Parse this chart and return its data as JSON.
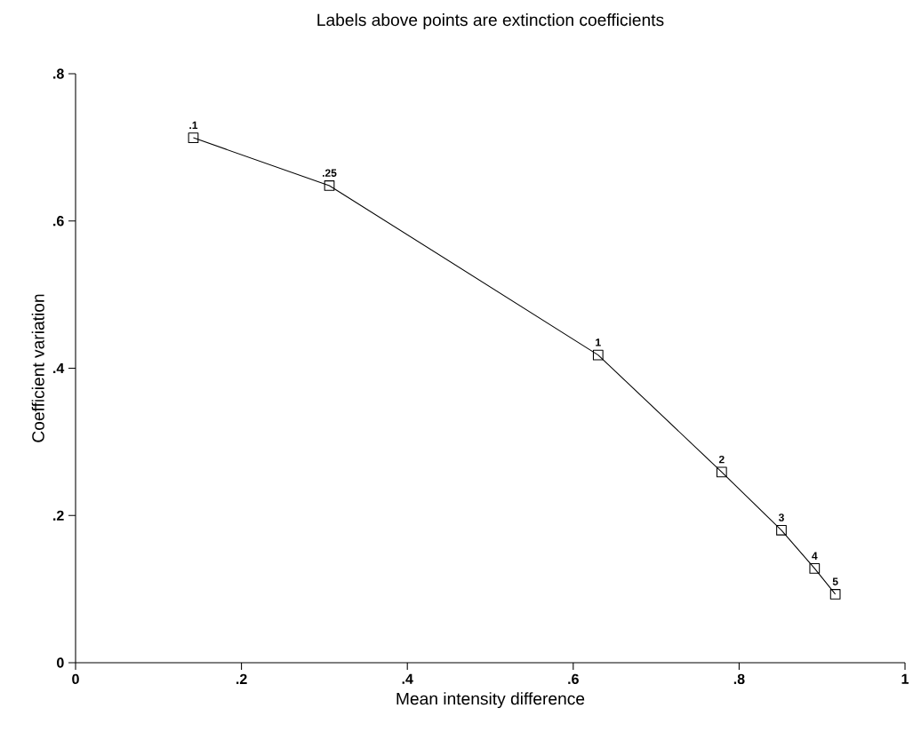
{
  "chart_data": {
    "type": "line",
    "title": "Labels above points are extinction coefficients",
    "xlabel": "Mean intensity difference",
    "ylabel": "Coefficient variation",
    "x": [
      0.142,
      0.306,
      0.63,
      0.779,
      0.851,
      0.891,
      0.916
    ],
    "values": [
      0.713,
      0.648,
      0.418,
      0.259,
      0.18,
      0.128,
      0.093
    ],
    "annotations": [
      {
        "text": ".1",
        "x": 0.142,
        "y": 0.713
      },
      {
        "text": ".25",
        "x": 0.306,
        "y": 0.648
      },
      {
        "text": "1",
        "x": 0.63,
        "y": 0.418
      },
      {
        "text": "2",
        "x": 0.779,
        "y": 0.259
      },
      {
        "text": "3",
        "x": 0.851,
        "y": 0.18
      },
      {
        "text": "4",
        "x": 0.891,
        "y": 0.128
      },
      {
        "text": "5",
        "x": 0.916,
        "y": 0.093
      }
    ],
    "color": "#000000",
    "marker": "square",
    "line_style": "solid",
    "grid": false,
    "xlim": [
      0,
      1
    ],
    "ylim": [
      0,
      0.8
    ],
    "xticks": [
      0,
      {
        "value": 0.2,
        "label": ".2"
      },
      {
        "value": 0.4,
        "label": ".4"
      },
      {
        "value": 0.6,
        "label": ".6"
      },
      {
        "value": 0.8,
        "label": ".8"
      },
      1
    ],
    "yticks": [
      0,
      {
        "value": 0.2,
        "label": ".2"
      },
      {
        "value": 0.4,
        "label": ".4"
      },
      {
        "value": 0.6,
        "label": ".6"
      },
      {
        "value": 0.8,
        "label": ".8"
      }
    ]
  }
}
